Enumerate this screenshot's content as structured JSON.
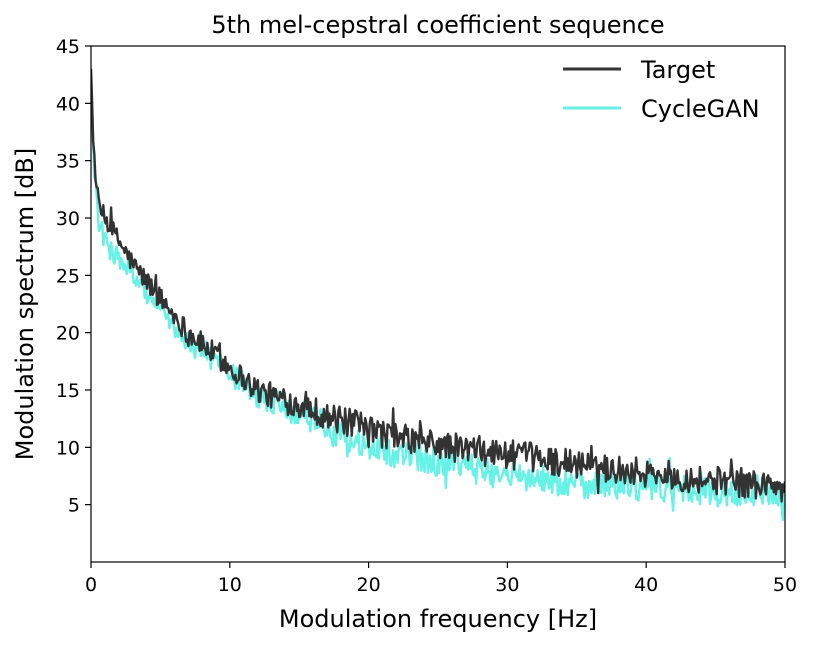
{
  "chart_data": {
    "type": "line",
    "title": "5th mel-cepstral coefficient sequence",
    "xlabel": "Modulation frequency [Hz]",
    "ylabel": "Modulation spectrum [dB]",
    "xlim": [
      0,
      50
    ],
    "ylim": [
      0,
      45
    ],
    "xticks": [
      0,
      10,
      20,
      30,
      40,
      50
    ],
    "yticks": [
      5,
      10,
      15,
      20,
      25,
      30,
      35,
      40,
      45
    ],
    "grid": false,
    "legend_position": "top-right",
    "series": [
      {
        "name": "Target",
        "color": "#333333",
        "x": [
          0,
          0.2,
          0.5,
          1,
          1.5,
          2,
          3,
          4,
          5,
          6,
          7,
          8,
          9,
          10,
          11,
          12,
          13,
          14,
          15,
          16,
          17,
          18,
          19,
          20,
          22,
          24,
          26,
          28,
          30,
          32,
          34,
          36,
          38,
          40,
          42,
          44,
          46,
          48,
          50
        ],
        "values": [
          43,
          36,
          31,
          30,
          29,
          28,
          26,
          24.5,
          23,
          21.5,
          20,
          19,
          18,
          17,
          16,
          15,
          14.5,
          14,
          13.8,
          13.3,
          12.7,
          12.3,
          12,
          11.5,
          10.9,
          10.4,
          10,
          9.7,
          9.4,
          9.1,
          8.7,
          8.4,
          8.1,
          7.8,
          7.5,
          7.2,
          7,
          6.8,
          6.5
        ]
      },
      {
        "name": "CycleGAN",
        "color": "#66f2e6",
        "x": [
          0,
          0.2,
          0.5,
          1,
          1.5,
          2,
          3,
          4,
          5,
          6,
          7,
          8,
          9,
          10,
          11,
          12,
          13,
          14,
          15,
          16,
          17,
          18,
          19,
          20,
          22,
          24,
          26,
          28,
          30,
          32,
          34,
          36,
          38,
          40,
          42,
          44,
          46,
          48,
          50
        ],
        "values": [
          42,
          35,
          30,
          28,
          27,
          26.5,
          25,
          23.5,
          22,
          20,
          19,
          18.5,
          17.5,
          16.5,
          15.5,
          14.5,
          14,
          13.5,
          13,
          12.5,
          12,
          11,
          10.5,
          10,
          9.5,
          9,
          8.5,
          8,
          7.5,
          7.2,
          7,
          6.8,
          6.7,
          6.5,
          6.4,
          6.2,
          6,
          5.8,
          5.8
        ]
      }
    ]
  }
}
